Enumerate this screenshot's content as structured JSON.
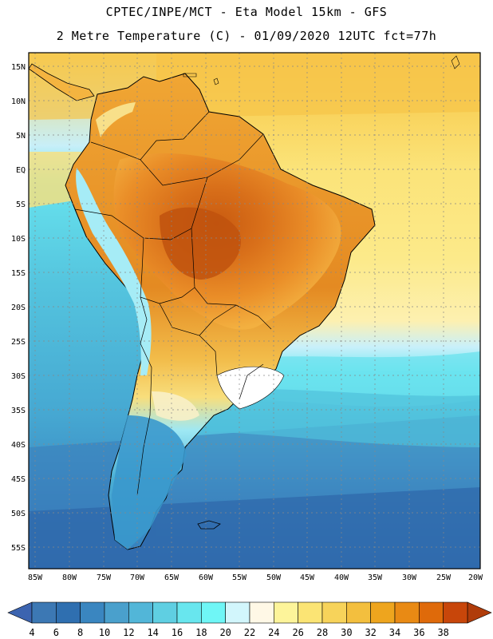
{
  "title_line1": "CPTEC/INPE/MCT -  Eta Model 15km - GFS",
  "title_line2": "2 Metre Temperature (C) - 01/09/2020 12UTC fct=77h",
  "lat_labels": [
    "15N",
    "10N",
    "5N",
    "EQ",
    "5S",
    "10S",
    "15S",
    "20S",
    "25S",
    "30S",
    "35S",
    "40S",
    "45S",
    "50S",
    "55S"
  ],
  "lon_labels": [
    "85W",
    "80W",
    "75W",
    "70W",
    "65W",
    "60W",
    "55W",
    "50W",
    "45W",
    "40W",
    "35W",
    "30W",
    "25W",
    "20W"
  ],
  "colorbar": {
    "labels": [
      "4",
      "6",
      "8",
      "10",
      "12",
      "14",
      "16",
      "18",
      "20",
      "22",
      "24",
      "26",
      "28",
      "30",
      "32",
      "34",
      "36",
      "38"
    ],
    "colors": [
      "#3c78b4",
      "#2f6fb0",
      "#3a86c0",
      "#4aa0cc",
      "#52b6d8",
      "#5fcfe2",
      "#68e6ee",
      "#6ff6f6",
      "#d2f6fc",
      "#fff8e6",
      "#fdf49a",
      "#fbe474",
      "#f7d35a",
      "#f3bf3e",
      "#eea51e",
      "#e98a14",
      "#df6a0a",
      "#c8460a"
    ],
    "low_color": "#3c64b0",
    "high_color": "#b03c0a"
  },
  "colors": {
    "ocean_cool": "#3a8ac4",
    "ocean_mid": "#4ab6d8",
    "ocean_warm": "#fde98a",
    "land_hot": "#d9701a",
    "land_warm": "#ee9a2c",
    "land_mild": "#f5c254",
    "andes": "#9ee6f4",
    "patagonia": "#3a9ccc"
  }
}
